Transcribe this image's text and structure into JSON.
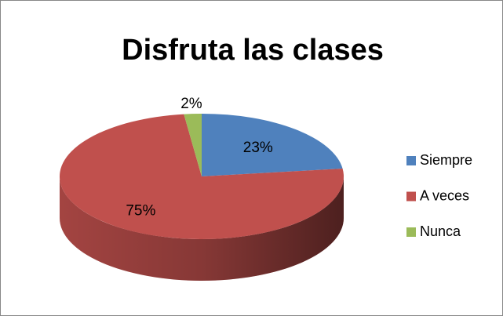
{
  "chart_data": {
    "type": "pie",
    "title": "Disfruta las clases",
    "categories": [
      "Siempre",
      "A veces",
      "Nunca"
    ],
    "values": [
      23,
      75,
      2
    ],
    "value_labels": [
      "23%",
      "75%",
      "2%"
    ],
    "colors": [
      "#4f81bd",
      "#c0504d",
      "#9bbb59"
    ],
    "legend": "right"
  }
}
